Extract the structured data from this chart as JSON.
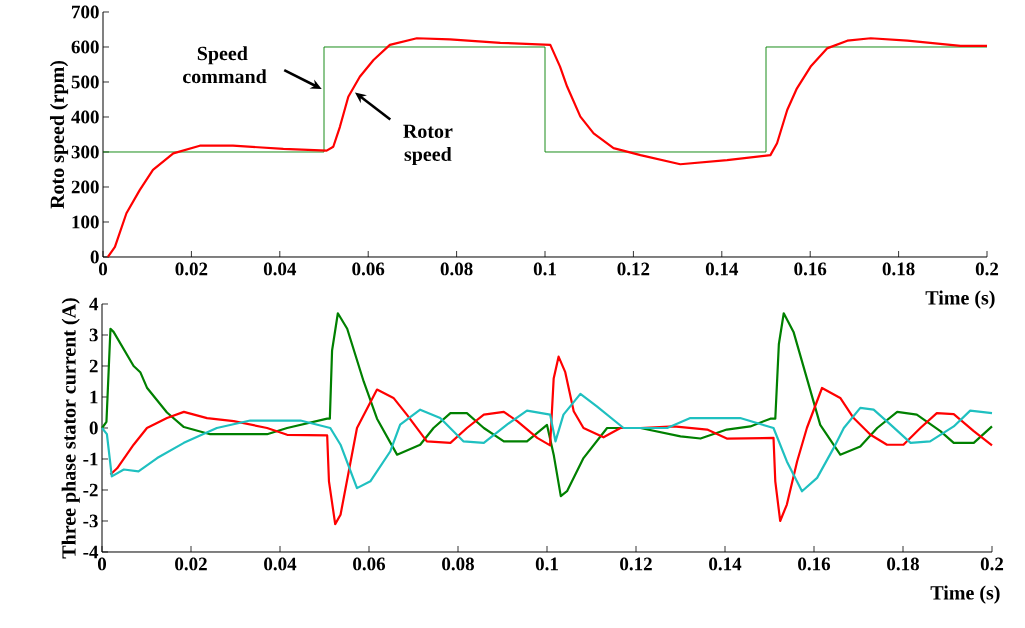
{
  "chart_data": [
    {
      "type": "line",
      "ylabel": "Roto speed (rpm)",
      "xlabel": "Time (s)",
      "xlim": [
        0,
        0.2
      ],
      "ylim": [
        0,
        700
      ],
      "xticks": [
        0,
        0.02,
        0.04,
        0.06,
        0.08,
        0.1,
        0.12,
        0.14,
        0.16,
        0.18,
        0.2
      ],
      "yticks": [
        0,
        100,
        200,
        300,
        400,
        500,
        600,
        700
      ],
      "series": [
        {
          "type": "step",
          "color": "#008000",
          "x": [
            0,
            0.05,
            0.1,
            0.15,
            0.2
          ],
          "values": [
            300,
            600,
            300,
            600,
            600
          ]
        },
        {
          "color": "#ff0000",
          "x": [
            0.0011,
            0.0027,
            0.0053,
            0.0083,
            0.0113,
            0.0159,
            0.0219,
            0.0294,
            0.0408,
            0.0506,
            0.0521,
            0.0536,
            0.0555,
            0.0581,
            0.0612,
            0.0649,
            0.071,
            0.0785,
            0.0899,
            0.1012,
            0.1034,
            0.105,
            0.108,
            0.111,
            0.1155,
            0.1216,
            0.1306,
            0.1412,
            0.151,
            0.1525,
            0.1548,
            0.157,
            0.1601,
            0.1638,
            0.1684,
            0.1737,
            0.182,
            0.194,
            0.2
          ],
          "values": [
            0,
            29,
            125,
            191,
            249,
            296,
            318,
            318,
            309,
            304,
            315,
            372,
            458,
            515,
            563,
            606,
            625,
            622,
            612,
            606,
            544,
            487,
            401,
            353,
            311,
            291,
            265,
            277,
            291,
            325,
            420,
            482,
            544,
            596,
            618,
            625,
            618,
            603,
            603
          ]
        }
      ],
      "annotations": [
        {
          "text": "Speed command",
          "x": 0.0495,
          "y": 480
        },
        {
          "text": "Rotor speed",
          "x": 0.057,
          "y": 470
        }
      ]
    },
    {
      "type": "line",
      "ylabel": "Three phase stator current (A)",
      "xlabel": "Time (s)",
      "xlim": [
        0,
        0.2
      ],
      "ylim": [
        -4,
        4
      ],
      "xticks": [
        0,
        0.02,
        0.04,
        0.06,
        0.08,
        0.1,
        0.12,
        0.14,
        0.16,
        0.18,
        0.2
      ],
      "yticks": [
        -4,
        -3,
        -2,
        -1,
        0,
        1,
        2,
        3,
        4
      ],
      "series": [
        {
          "color": "#008000",
          "x": [
            0,
            0.001,
            0.0019,
            0.0026,
            0.0071,
            0.0086,
            0.0101,
            0.0146,
            0.0184,
            0.0243,
            0.0318,
            0.0371,
            0.0416,
            0.0506,
            0.0512,
            0.0517,
            0.053,
            0.0551,
            0.0588,
            0.0618,
            0.0663,
            0.0715,
            0.0745,
            0.0783,
            0.082,
            0.0858,
            0.0903,
            0.0955,
            0.1,
            0.1015,
            0.1031,
            0.1045,
            0.1082,
            0.1135,
            0.121,
            0.13,
            0.1345,
            0.1404,
            0.1457,
            0.1502,
            0.1513,
            0.1521,
            0.1532,
            0.1554,
            0.1584,
            0.1614,
            0.1659,
            0.1704,
            0.1742,
            0.1787,
            0.1831,
            0.1884,
            0.1914,
            0.1959,
            0.2
          ],
          "values": [
            0,
            0.2,
            3.2,
            3.1,
            2.0,
            1.8,
            1.3,
            0.5,
            0.03,
            -0.2,
            -0.2,
            -0.2,
            0,
            0.3,
            0.3,
            2.5,
            3.7,
            3.2,
            1.5,
            0.3,
            -0.86,
            -0.54,
            0,
            0.48,
            0.48,
            0,
            -0.43,
            -0.43,
            0.1,
            -0.86,
            -2.2,
            -2.04,
            -0.97,
            0,
            0,
            -0.27,
            -0.34,
            -0.05,
            0.05,
            0.3,
            0.3,
            2.7,
            3.7,
            3.1,
            1.6,
            0.1,
            -0.86,
            -0.6,
            0,
            0.52,
            0.43,
            -0.1,
            -0.48,
            -0.48,
            0.05
          ]
        },
        {
          "color": "#ff0000",
          "x": [
            0.0019,
            0.0034,
            0.0071,
            0.0101,
            0.0146,
            0.0184,
            0.0236,
            0.0296,
            0.0371,
            0.0416,
            0.0506,
            0.051,
            0.0524,
            0.0536,
            0.0573,
            0.0618,
            0.0655,
            0.0685,
            0.073,
            0.0783,
            0.082,
            0.0858,
            0.0903,
            0.0933,
            0.0978,
            0.1007,
            0.1015,
            0.1026,
            0.1041,
            0.106,
            0.1082,
            0.1127,
            0.1165,
            0.121,
            0.1285,
            0.136,
            0.1404,
            0.1509,
            0.1513,
            0.1524,
            0.1539,
            0.1562,
            0.1584,
            0.1618,
            0.1659,
            0.1689,
            0.1727,
            0.1764,
            0.1801,
            0.1839,
            0.1876,
            0.1914,
            0.1959,
            0.2
          ],
          "values": [
            -1.5,
            -1.3,
            -0.54,
            0,
            0.32,
            0.52,
            0.32,
            0.22,
            0,
            -0.22,
            -0.24,
            -1.72,
            -3.1,
            -2.8,
            0,
            1.24,
            0.97,
            0.43,
            -0.43,
            -0.48,
            0,
            0.43,
            0.52,
            0.22,
            -0.32,
            -0.56,
            1.6,
            2.3,
            1.8,
            0.54,
            0,
            -0.3,
            0,
            0,
            0.05,
            -0.05,
            -0.34,
            -0.32,
            -1.72,
            -3.0,
            -2.47,
            -1.08,
            0,
            1.29,
            0.97,
            0.32,
            -0.22,
            -0.54,
            -0.54,
            0,
            0.48,
            0.45,
            -0.1,
            -0.56
          ]
        },
        {
          "color": "#1fc0c0",
          "x": [
            0,
            0.0011,
            0.0022,
            0.0049,
            0.0082,
            0.0124,
            0.0184,
            0.0258,
            0.0333,
            0.0446,
            0.0513,
            0.0536,
            0.0573,
            0.0603,
            0.0648,
            0.067,
            0.0715,
            0.076,
            0.0812,
            0.0858,
            0.091,
            0.0955,
            0.1007,
            0.1019,
            0.1037,
            0.1075,
            0.1112,
            0.1172,
            0.127,
            0.1322,
            0.1434,
            0.1509,
            0.1539,
            0.1573,
            0.1607,
            0.1644,
            0.1667,
            0.1704,
            0.1734,
            0.1772,
            0.1817,
            0.1861,
            0.1914,
            0.1951,
            0.2
          ],
          "values": [
            0,
            -0.2,
            -1.56,
            -1.34,
            -1.4,
            -0.97,
            -0.48,
            0,
            0.24,
            0.24,
            0,
            -0.54,
            -1.94,
            -1.72,
            -0.75,
            0.11,
            0.59,
            0.32,
            -0.43,
            -0.48,
            0.11,
            0.56,
            0.43,
            -0.43,
            0.43,
            1.1,
            0.7,
            0,
            0,
            0.32,
            0.32,
            0,
            -1.08,
            -2.04,
            -1.61,
            -0.65,
            0,
            0.65,
            0.59,
            0.11,
            -0.48,
            -0.43,
            0.05,
            0.56,
            0.48
          ]
        }
      ]
    }
  ]
}
